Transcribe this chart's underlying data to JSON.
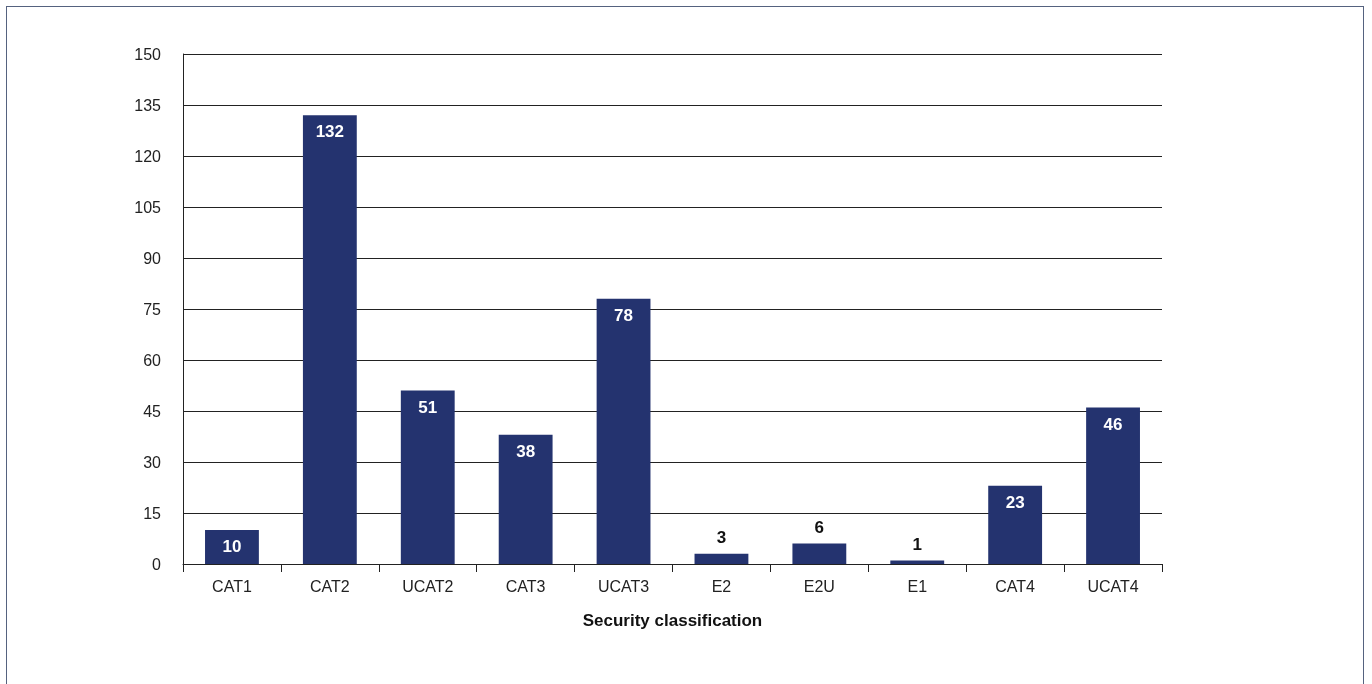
{
  "chart_data": {
    "type": "bar",
    "xlabel": "Security classification",
    "categories": [
      "CAT1",
      "CAT2",
      "UCAT2",
      "CAT3",
      "UCAT3",
      "E2",
      "E2U",
      "E1",
      "CAT4",
      "UCAT4"
    ],
    "values": [
      10,
      132,
      51,
      38,
      78,
      3,
      6,
      1,
      23,
      46
    ],
    "color": "#24336f",
    "ylim": [
      0,
      150
    ],
    "yticks": [
      0,
      15,
      30,
      45,
      60,
      75,
      90,
      105,
      120,
      135,
      150
    ],
    "grid": "y",
    "data_labels": true
  }
}
